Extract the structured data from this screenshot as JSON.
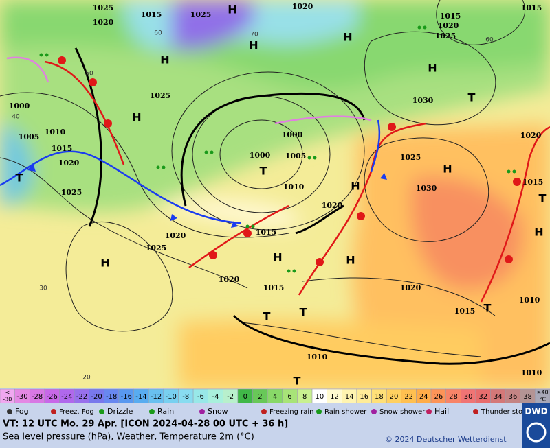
{
  "map": {
    "pressure_labels": [
      "1025",
      "1020",
      "1015",
      "1025",
      "1020",
      "1015",
      "1020",
      "1025",
      "1015",
      "1030",
      "1025",
      "1000",
      "1010",
      "1005",
      "1015",
      "1020",
      "1025",
      "1000",
      "1005",
      "1010",
      "1000",
      "1025",
      "1030",
      "1020",
      "1015",
      "1020",
      "1025",
      "1020",
      "1015",
      "1020",
      "1015",
      "1010",
      "1010",
      "1010",
      "1015",
      "1020"
    ],
    "temperature_labels": [
      "60",
      "70",
      "50",
      "40",
      "30",
      "20",
      "60"
    ],
    "highs": [
      "H",
      "H",
      "H",
      "H",
      "H",
      "H",
      "H",
      "H",
      "H",
      "H",
      "H",
      "H"
    ],
    "lows": [
      "T",
      "T",
      "T",
      "T",
      "T",
      "T",
      "T",
      "T"
    ]
  },
  "temperature_scale": {
    "cells": [
      {
        "top": "<",
        "bottom": "-30",
        "color": "#f0a8f0"
      },
      {
        "label": -30,
        "color": "#e488e4"
      },
      {
        "label": -28,
        "color": "#d878e4"
      },
      {
        "label": -26,
        "color": "#c868e8"
      },
      {
        "label": -24,
        "color": "#b068ec"
      },
      {
        "label": -22,
        "color": "#9870ec"
      },
      {
        "label": -20,
        "color": "#7878ec"
      },
      {
        "label": -18,
        "color": "#6888f0"
      },
      {
        "label": -16,
        "color": "#5898f0"
      },
      {
        "label": -14,
        "color": "#58acf0"
      },
      {
        "label": -12,
        "color": "#68c0f0"
      },
      {
        "label": -10,
        "color": "#78d0f0"
      },
      {
        "label": -8,
        "color": "#88dcf0"
      },
      {
        "label": -6,
        "color": "#98e8e8"
      },
      {
        "label": -4,
        "color": "#a8f0dc"
      },
      {
        "label": -2,
        "color": "#b8f0cc"
      },
      {
        "label": 0,
        "color": "#40b848"
      },
      {
        "label": 2,
        "color": "#68c858"
      },
      {
        "label": 4,
        "color": "#88d868"
      },
      {
        "label": 6,
        "color": "#a8e478"
      },
      {
        "label": 8,
        "color": "#c8f090"
      },
      {
        "label": 10,
        "color": "#ffffff"
      },
      {
        "label": 12,
        "color": "#fffad0"
      },
      {
        "label": 14,
        "color": "#fff4b0"
      },
      {
        "label": 16,
        "color": "#ffec98"
      },
      {
        "label": 18,
        "color": "#ffe078"
      },
      {
        "label": 20,
        "color": "#ffd060"
      },
      {
        "label": 22,
        "color": "#ffc050"
      },
      {
        "label": 24,
        "color": "#ffac48"
      },
      {
        "label": 26,
        "color": "#fc9458"
      },
      {
        "label": 28,
        "color": "#f88468"
      },
      {
        "label": 30,
        "color": "#f07474"
      },
      {
        "label": 32,
        "color": "#e86c6c"
      },
      {
        "label": 34,
        "color": "#d47878"
      },
      {
        "label": 36,
        "color": "#c48484"
      },
      {
        "label": 38,
        "color": "#b49494"
      },
      {
        "top": "≥40",
        "bottom": "°C",
        "color": "#a8a8b8"
      }
    ]
  },
  "weather_legend": [
    "Fog",
    "Freez. Fog",
    "Drizzle",
    "Rain",
    "Snow",
    "Freezing rain",
    "Rain shower",
    "Snow shower",
    "Hail",
    "Thunder storm"
  ],
  "footer": {
    "valid_time": "VT: 12 UTC Mo.  29 Apr. [ICON 2024-04-28  00 UTC + 36 h]",
    "description": "Sea level pressure (hPa), Weather, Temperature 2m (°C)",
    "copyright": "© 2024 Deutscher Wetterdienst",
    "logo": "DWD"
  }
}
